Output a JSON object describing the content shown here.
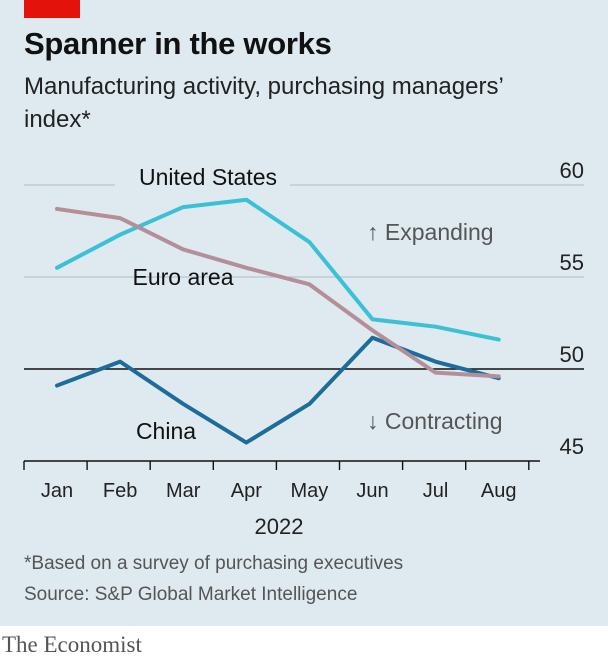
{
  "header": {
    "title": "Spanner in the works",
    "subtitle": "Manufacturing activity, purchasing managers’ index*"
  },
  "chart_data": {
    "type": "line",
    "categories": [
      "Jan",
      "Feb",
      "Mar",
      "Apr",
      "May",
      "Jun",
      "Jul",
      "Aug"
    ],
    "xlabel": "2022",
    "ylabel": "",
    "ylim": [
      45,
      60
    ],
    "yticks": [
      45,
      50,
      55,
      60
    ],
    "grid": true,
    "series": [
      {
        "name": "United States",
        "color": "#3bc1d6",
        "values": [
          55.5,
          57.3,
          58.8,
          59.2,
          56.9,
          52.7,
          52.3,
          51.6
        ]
      },
      {
        "name": "Euro area",
        "color": "#b48f99",
        "values": [
          58.7,
          58.2,
          56.5,
          55.5,
          54.6,
          52.1,
          49.8,
          49.6
        ]
      },
      {
        "name": "China",
        "color": "#1c6c9c",
        "values": [
          49.1,
          50.4,
          48.1,
          46.0,
          48.1,
          51.7,
          50.4,
          49.5
        ]
      }
    ],
    "annotations": {
      "expanding": "↑ Expanding",
      "contracting": "↓ Contracting"
    }
  },
  "footer": {
    "footnote": "*Based on a survey of purchasing executives",
    "source": "Source: S&P Global Market Intelligence",
    "brand": "The Economist"
  }
}
